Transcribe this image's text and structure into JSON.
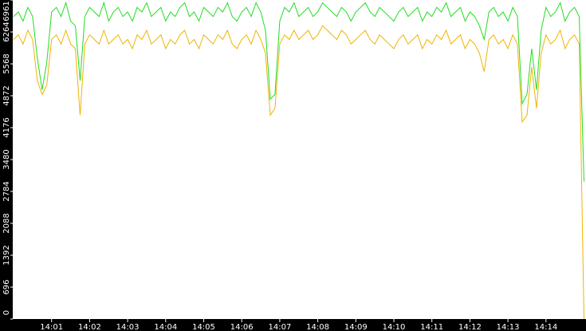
{
  "chart_data": {
    "type": "line",
    "categories": [
      null,
      null,
      null,
      null,
      null,
      null,
      null,
      null,
      "14:01",
      null,
      null,
      null,
      null,
      null,
      null,
      null,
      "14:02",
      null,
      null,
      null,
      null,
      null,
      null,
      null,
      "14:03",
      null,
      null,
      null,
      null,
      null,
      null,
      null,
      "14:04",
      null,
      null,
      null,
      null,
      null,
      null,
      null,
      "14:05",
      null,
      null,
      null,
      null,
      null,
      null,
      null,
      "14:06",
      null,
      null,
      null,
      null,
      null,
      null,
      null,
      "14:07",
      null,
      null,
      null,
      null,
      null,
      null,
      null,
      "14:08",
      null,
      null,
      null,
      null,
      null,
      null,
      null,
      "14:09",
      null,
      null,
      null,
      null,
      null,
      null,
      null,
      "14:10",
      null,
      null,
      null,
      null,
      null,
      null,
      null,
      "14:11",
      null,
      null,
      null,
      null,
      null,
      null,
      null,
      "14:12",
      null,
      null,
      null,
      null,
      null,
      null,
      null,
      "14:13",
      null,
      null,
      null,
      null,
      null,
      null,
      null,
      "14:14",
      null,
      null,
      null,
      null,
      null,
      null,
      null,
      null
    ],
    "series": [
      {
        "color": "#22dd22",
        "values": [
          6600,
          6700,
          6500,
          6800,
          6600,
          5700,
          5000,
          5600,
          6700,
          6800,
          6600,
          6900,
          6500,
          6400,
          5200,
          6600,
          6800,
          6700,
          6600,
          6900,
          6500,
          6700,
          6800,
          6600,
          6700,
          6500,
          6800,
          6700,
          6900,
          6600,
          6700,
          6800,
          6500,
          6700,
          6600,
          6800,
          6900,
          6600,
          6700,
          6500,
          6800,
          6700,
          6600,
          6800,
          6700,
          6900,
          6600,
          6500,
          6700,
          6800,
          6600,
          6900,
          6700,
          6300,
          4800,
          4900,
          6500,
          6800,
          6700,
          6900,
          6600,
          6700,
          6800,
          6600,
          6700,
          6900,
          6800,
          6700,
          6600,
          6800,
          6700,
          6500,
          6700,
          6800,
          6900,
          6700,
          6600,
          6800,
          6700,
          6600,
          6500,
          6700,
          6800,
          6600,
          6700,
          6800,
          6500,
          6700,
          6600,
          6800,
          6700,
          6900,
          6600,
          6700,
          6800,
          6500,
          6700,
          6600,
          6400,
          6100,
          6700,
          6800,
          6600,
          6700,
          6500,
          6800,
          6600,
          4700,
          4900,
          5900,
          5000,
          6300,
          6800,
          6600,
          6700,
          6900,
          6500,
          6700,
          6800,
          6600,
          3000
        ]
      },
      {
        "color": "#f0b400",
        "values": [
          6100,
          6200,
          6000,
          6300,
          6100,
          5200,
          4900,
          5100,
          6100,
          6200,
          6000,
          6300,
          6000,
          5900,
          4450,
          6000,
          6200,
          6100,
          6000,
          6300,
          6000,
          6100,
          6200,
          6000,
          6100,
          5900,
          6200,
          6100,
          6300,
          6000,
          6100,
          6200,
          5900,
          6100,
          6000,
          6200,
          6300,
          6000,
          6100,
          5900,
          6200,
          6100,
          6000,
          6200,
          6100,
          6300,
          6000,
          5900,
          6100,
          6200,
          6000,
          6300,
          6100,
          5800,
          4450,
          4600,
          6000,
          6200,
          6100,
          6300,
          6100,
          6200,
          6300,
          6100,
          6200,
          6400,
          6300,
          6200,
          6100,
          6300,
          6200,
          6000,
          6100,
          6200,
          6300,
          6100,
          6000,
          6200,
          6100,
          6000,
          5900,
          6100,
          6200,
          6000,
          6100,
          6200,
          5900,
          6100,
          6000,
          6200,
          6100,
          6300,
          6000,
          6100,
          6200,
          5900,
          6100,
          6000,
          5800,
          5400,
          6100,
          6200,
          6000,
          6100,
          5900,
          6200,
          6000,
          4300,
          4450,
          5500,
          4600,
          5800,
          6200,
          6000,
          6100,
          6300,
          5900,
          6100,
          6200,
          6000,
          0
        ]
      }
    ],
    "ylim": [
      0,
      6961
    ],
    "yticks": [
      0,
      696,
      1392,
      2088,
      2784,
      3480,
      4176,
      4872,
      5568,
      6264,
      6961
    ]
  }
}
